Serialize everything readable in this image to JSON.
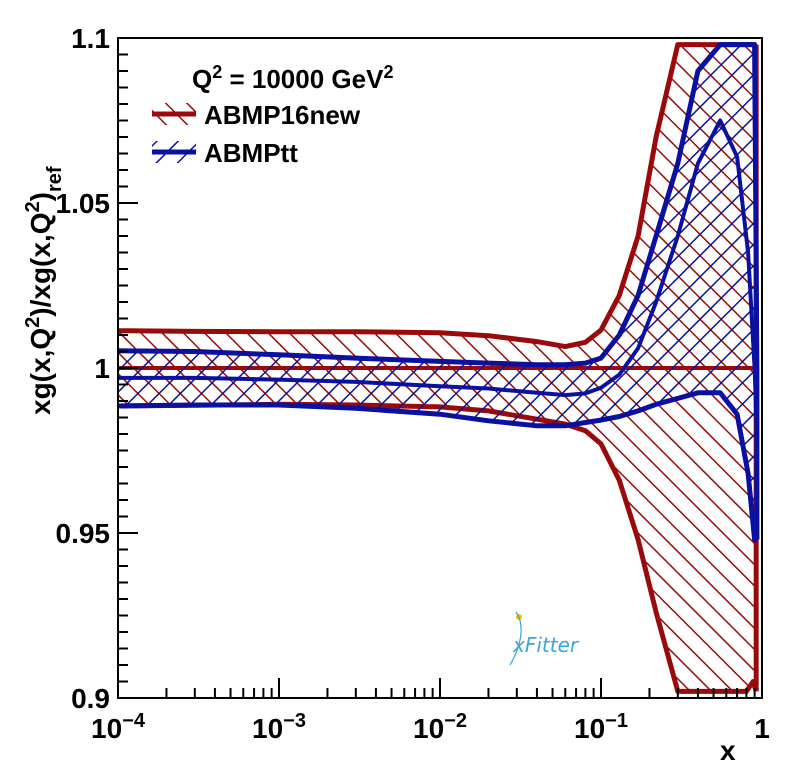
{
  "chart_data": {
    "type": "area",
    "title": "",
    "xlabel": "x",
    "ylabel": "xg(x,Q²)/xg(x,Q²)_ref",
    "xscale": "log",
    "xlim": [
      0.0001,
      1
    ],
    "ylim": [
      0.9,
      1.1
    ],
    "grid": false,
    "annotation": {
      "q_prefix": "Q",
      "q_sup": "2",
      "q_mid": " = 10000 GeV",
      "q_unit_sup": "2"
    },
    "legend_position": "top-left",
    "x_tick_labels": [
      {
        "base": "10",
        "exp": "−4",
        "value": 0.0001
      },
      {
        "base": "10",
        "exp": "−3",
        "value": 0.001
      },
      {
        "base": "10",
        "exp": "−2",
        "value": 0.01
      },
      {
        "base": "10",
        "exp": "−1",
        "value": 0.1
      },
      {
        "base": "1",
        "exp": "",
        "value": 1
      }
    ],
    "y_tick_labels": [
      "0.9",
      "0.95",
      "1",
      "1.05",
      "1.1"
    ],
    "y_tick_values": [
      0.9,
      0.95,
      1.0,
      1.05,
      1.1
    ],
    "series": [
      {
        "name": "ABMP16new",
        "color": "#9b0a0a",
        "x": [
          0.0001,
          0.0003,
          0.001,
          0.003,
          0.01,
          0.02,
          0.04,
          0.06,
          0.08,
          0.1,
          0.13,
          0.17,
          0.22,
          0.3,
          0.4,
          0.6,
          0.8,
          0.88,
          0.92
        ],
        "upper": [
          1.0113,
          1.0111,
          1.011,
          1.011,
          1.0107,
          1.0098,
          1.008,
          1.0065,
          1.0078,
          1.0115,
          1.022,
          1.04,
          1.07,
          1.098,
          1.098,
          1.098,
          1.098,
          1.098,
          1.098
        ],
        "lower": [
          0.9885,
          0.9887,
          0.989,
          0.9888,
          0.9882,
          0.987,
          0.9845,
          0.983,
          0.981,
          0.977,
          0.966,
          0.948,
          0.926,
          0.902,
          0.902,
          0.902,
          0.902,
          0.905,
          0.902
        ],
        "central": [
          1.0,
          1.0,
          1.0,
          1.0,
          1.0,
          1.0,
          1.0,
          1.0,
          1.0,
          1.0,
          1.0,
          1.0,
          1.0,
          1.0,
          1.0,
          1.0,
          1.0,
          1.0,
          1.0
        ]
      },
      {
        "name": "ABMPtt",
        "color": "#0a10a0",
        "x": [
          0.0001,
          0.0003,
          0.001,
          0.003,
          0.01,
          0.02,
          0.04,
          0.06,
          0.08,
          0.1,
          0.13,
          0.17,
          0.22,
          0.3,
          0.4,
          0.55,
          0.7,
          0.82,
          0.9,
          0.93
        ],
        "upper": [
          1.0052,
          1.005,
          1.004,
          1.003,
          1.002,
          1.0015,
          1.001,
          1.001,
          1.0015,
          1.003,
          1.01,
          1.022,
          1.04,
          1.062,
          1.09,
          1.098,
          1.098,
          1.098,
          1.098,
          1.0
        ],
        "lower": [
          0.9885,
          0.9888,
          0.9888,
          0.9878,
          0.986,
          0.984,
          0.9825,
          0.9825,
          0.9835,
          0.9842,
          0.9853,
          0.987,
          0.989,
          0.9908,
          0.9925,
          0.9925,
          0.986,
          0.968,
          0.948,
          0.948
        ],
        "central": [
          0.997,
          0.997,
          0.9965,
          0.9958,
          0.9945,
          0.9938,
          0.9925,
          0.9918,
          0.9923,
          0.994,
          0.998,
          1.006,
          1.02,
          1.04,
          1.062,
          1.075,
          1.064,
          1.035,
          1.0,
          0.98
        ]
      }
    ]
  },
  "logo": {
    "text": "xFitter"
  }
}
